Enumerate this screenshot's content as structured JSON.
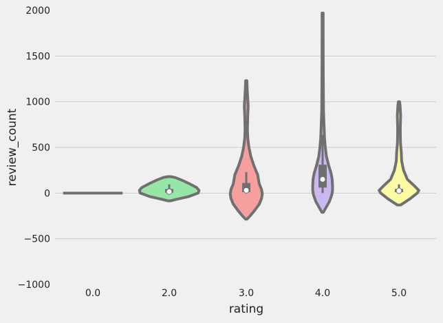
{
  "chart_data": {
    "type": "violin",
    "xlabel": "rating",
    "ylabel": "review_count",
    "ylim": [
      -1000,
      2000
    ],
    "yticks": [
      -1000,
      -500,
      0,
      500,
      1000,
      1500,
      2000
    ],
    "ytick_labels": [
      "−1000",
      "−500",
      "0",
      "500",
      "1000",
      "1500",
      "2000"
    ],
    "categories": [
      "0.0",
      "2.0",
      "3.0",
      "4.0",
      "5.0"
    ],
    "grid": "horizontal",
    "colors": {
      "background": "#f0f0f0",
      "grid": "#cbcbcb",
      "outline": "#707070",
      "median": "#ffffff"
    },
    "violins": [
      {
        "category": "0.0",
        "color": "#9ab6e6",
        "profile": [
          [
            0,
            0.39
          ]
        ],
        "box": {
          "q1": 0,
          "q3": 0,
          "whisker_low": 0,
          "whisker_high": 0,
          "median": 0
        },
        "flat": true
      },
      {
        "category": "2.0",
        "color": "#97e6a5",
        "profile": [
          [
            -85,
            0.02
          ],
          [
            -70,
            0.09
          ],
          [
            -40,
            0.25
          ],
          [
            0,
            0.38
          ],
          [
            30,
            0.39
          ],
          [
            60,
            0.36
          ],
          [
            100,
            0.27
          ],
          [
            140,
            0.17
          ],
          [
            170,
            0.08
          ],
          [
            180,
            0.02
          ]
        ],
        "box": {
          "q1": 5,
          "q3": 45,
          "whisker_low": 5,
          "whisker_high": 95,
          "median": 15
        }
      },
      {
        "category": "3.0",
        "color": "#f5a09e",
        "profile": [
          [
            -285,
            0.01
          ],
          [
            -250,
            0.05
          ],
          [
            -200,
            0.1
          ],
          [
            -120,
            0.17
          ],
          [
            -60,
            0.2
          ],
          [
            -10,
            0.21
          ],
          [
            40,
            0.2
          ],
          [
            100,
            0.17
          ],
          [
            200,
            0.15
          ],
          [
            300,
            0.1
          ],
          [
            400,
            0.06
          ],
          [
            500,
            0.035
          ],
          [
            600,
            0.02
          ],
          [
            700,
            0.015
          ],
          [
            850,
            0.02
          ],
          [
            950,
            0.025
          ],
          [
            1050,
            0.018
          ],
          [
            1150,
            0.012
          ],
          [
            1230,
            0.008
          ]
        ],
        "box": {
          "q1": 10,
          "q3": 110,
          "whisker_low": 0,
          "whisker_high": 230,
          "median": 30
        }
      },
      {
        "category": "4.0",
        "color": "#cab9f1",
        "profile": [
          [
            -210,
            0.01
          ],
          [
            -150,
            0.05
          ],
          [
            -90,
            0.09
          ],
          [
            -20,
            0.12
          ],
          [
            30,
            0.13
          ],
          [
            80,
            0.13
          ],
          [
            150,
            0.125
          ],
          [
            220,
            0.11
          ],
          [
            300,
            0.08
          ],
          [
            400,
            0.05
          ],
          [
            500,
            0.035
          ],
          [
            600,
            0.025
          ],
          [
            750,
            0.018
          ],
          [
            900,
            0.012
          ],
          [
            1100,
            0.01
          ],
          [
            1400,
            0.008
          ],
          [
            1700,
            0.007
          ],
          [
            1970,
            0.007
          ]
        ],
        "box": {
          "q1": 60,
          "q3": 310,
          "whisker_low": 0,
          "whisker_high": 640,
          "median": 150
        }
      },
      {
        "category": "5.0",
        "color": "#fbf9a4",
        "profile": [
          [
            -130,
            0.02
          ],
          [
            -110,
            0.06
          ],
          [
            -60,
            0.15
          ],
          [
            0,
            0.24
          ],
          [
            30,
            0.26
          ],
          [
            80,
            0.2
          ],
          [
            150,
            0.11
          ],
          [
            250,
            0.06
          ],
          [
            350,
            0.035
          ],
          [
            450,
            0.03
          ],
          [
            550,
            0.02
          ],
          [
            700,
            0.017
          ],
          [
            850,
            0.022
          ],
          [
            950,
            0.015
          ],
          [
            1000,
            0.008
          ]
        ],
        "box": {
          "q1": 10,
          "q3": 45,
          "whisker_low": 0,
          "whisker_high": 95,
          "median": 25
        }
      }
    ]
  }
}
